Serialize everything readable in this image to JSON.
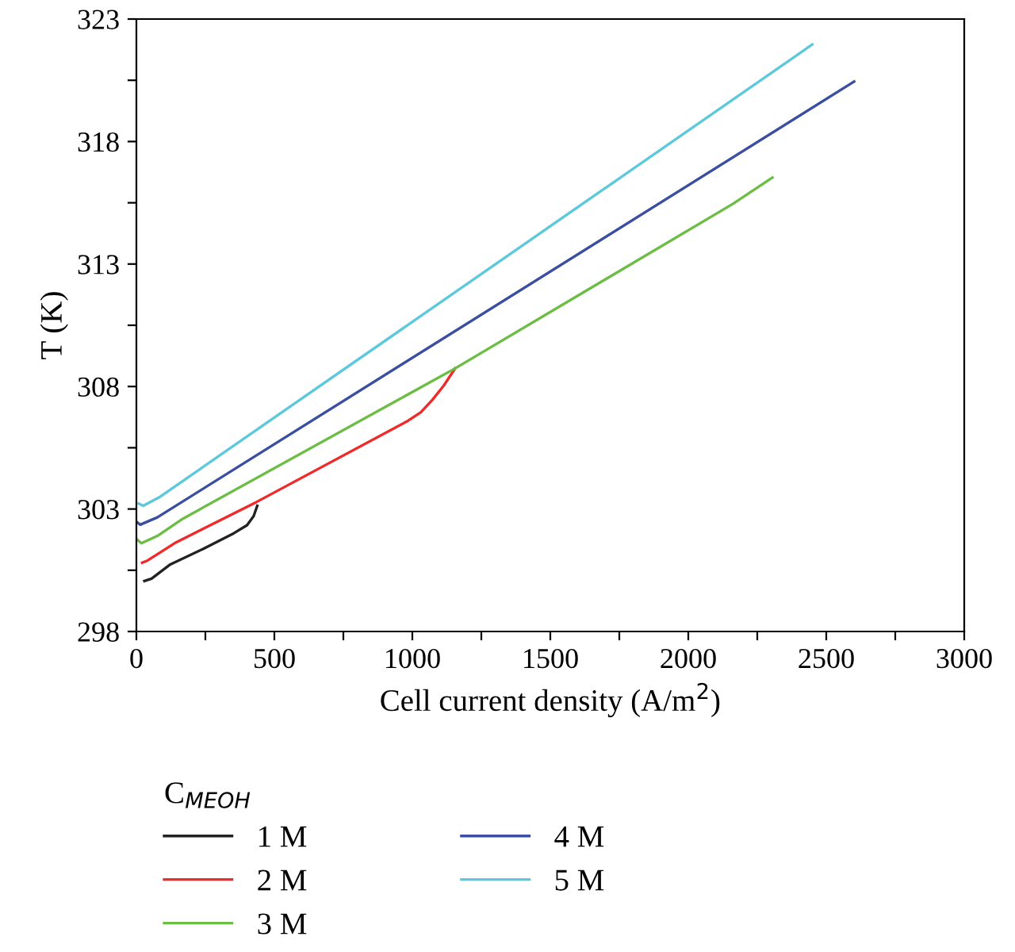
{
  "chart_data": {
    "type": "line",
    "xlabel": "Cell current density (A/m$^{2}$)",
    "ylabel": "T (K)",
    "legend_title": "C$_{MEOH}$",
    "legend": "bottom",
    "grid": false,
    "xlim": [
      0,
      3000
    ],
    "ylim": [
      298,
      323
    ],
    "xticks": [
      0,
      {
        "value": 250,
        "label": null
      },
      500,
      {
        "value": 750,
        "label": null
      },
      1000,
      {
        "value": 1250,
        "label": null
      },
      1500,
      {
        "value": 1750,
        "label": null
      },
      2000,
      {
        "value": 2250,
        "label": null
      },
      2500,
      {
        "value": 2750,
        "label": null
      },
      3000
    ],
    "yticks": [
      298,
      {
        "value": 300.5,
        "label": null
      },
      303,
      {
        "value": 305.5,
        "label": null
      },
      308,
      {
        "value": 310.5,
        "label": null
      },
      313,
      {
        "value": 315.5,
        "label": null
      },
      318,
      {
        "value": 320.5,
        "label": null
      },
      323
    ],
    "series": [
      {
        "name": "1 M",
        "color": "#222222",
        "x": [
          29,
          55,
          123,
          240,
          353,
          401,
          425,
          438
        ],
        "values": [
          300.06,
          300.16,
          300.74,
          301.36,
          302.01,
          302.34,
          302.71,
          303.13
        ]
      },
      {
        "name": "2 M",
        "color": "#ee2a2a",
        "x": [
          21,
          41,
          138,
          436,
          984,
          1031,
          1073,
          1114,
          1155
        ],
        "values": [
          300.81,
          300.9,
          301.6,
          303.29,
          306.6,
          306.95,
          307.46,
          308.04,
          308.74
        ]
      },
      {
        "name": "3 M",
        "color": "#6cbd45",
        "x": [
          0,
          18,
          76,
          168,
          1155,
          2162,
          2305
        ],
        "values": [
          301.78,
          301.6,
          301.9,
          302.6,
          308.74,
          315.46,
          316.53
        ]
      },
      {
        "name": "4 M",
        "color": "#3b4ea0",
        "x": [
          0,
          14,
          76,
          2601
        ],
        "values": [
          302.48,
          302.36,
          302.66,
          320.45
        ]
      },
      {
        "name": "5 M",
        "color": "#5bc8dc",
        "x": [
          8,
          25,
          86,
          2449
        ],
        "values": [
          303.22,
          303.13,
          303.5,
          321.96
        ]
      }
    ]
  }
}
